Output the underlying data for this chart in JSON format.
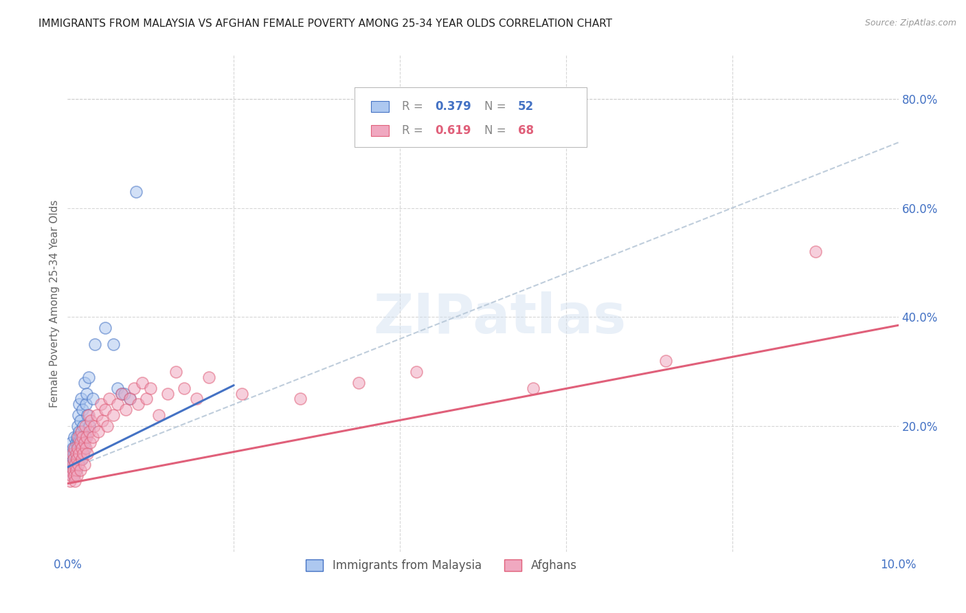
{
  "title": "IMMIGRANTS FROM MALAYSIA VS AFGHAN FEMALE POVERTY AMONG 25-34 YEAR OLDS CORRELATION CHART",
  "source": "Source: ZipAtlas.com",
  "ylabel": "Female Poverty Among 25-34 Year Olds",
  "xlim": [
    0.0,
    0.1
  ],
  "ylim": [
    -0.03,
    0.88
  ],
  "yticks_right": [
    0.2,
    0.4,
    0.6,
    0.8
  ],
  "yticklabels_right": [
    "20.0%",
    "40.0%",
    "60.0%",
    "80.0%"
  ],
  "color_blue": "#adc8f0",
  "color_pink": "#f0a8c0",
  "color_blue_line": "#4472c4",
  "color_pink_line": "#e0607a",
  "color_dashed": "#b8c8d8",
  "color_axis_text": "#4472c4",
  "watermark": "ZIPatlas",
  "malaysia_x": [
    0.0003,
    0.0004,
    0.0005,
    0.0005,
    0.0006,
    0.0006,
    0.0007,
    0.0007,
    0.0008,
    0.0008,
    0.0009,
    0.0009,
    0.001,
    0.001,
    0.001,
    0.0011,
    0.0011,
    0.0012,
    0.0012,
    0.0013,
    0.0013,
    0.0014,
    0.0014,
    0.0014,
    0.0015,
    0.0015,
    0.0015,
    0.0016,
    0.0016,
    0.0017,
    0.0017,
    0.0018,
    0.0018,
    0.0019,
    0.0019,
    0.002,
    0.002,
    0.0021,
    0.0022,
    0.0023,
    0.0024,
    0.0025,
    0.0026,
    0.003,
    0.0033,
    0.0045,
    0.0055,
    0.006,
    0.0065,
    0.0068,
    0.0075,
    0.0082
  ],
  "malaysia_y": [
    0.14,
    0.15,
    0.13,
    0.17,
    0.16,
    0.12,
    0.11,
    0.14,
    0.18,
    0.15,
    0.16,
    0.13,
    0.17,
    0.14,
    0.12,
    0.18,
    0.16,
    0.2,
    0.15,
    0.17,
    0.22,
    0.19,
    0.14,
    0.24,
    0.18,
    0.16,
    0.21,
    0.16,
    0.25,
    0.19,
    0.14,
    0.23,
    0.17,
    0.15,
    0.2,
    0.16,
    0.28,
    0.18,
    0.24,
    0.26,
    0.22,
    0.29,
    0.2,
    0.25,
    0.35,
    0.38,
    0.35,
    0.27,
    0.26,
    0.26,
    0.25,
    0.63
  ],
  "afghan_x": [
    0.0003,
    0.0004,
    0.0005,
    0.0006,
    0.0006,
    0.0007,
    0.0007,
    0.0008,
    0.0008,
    0.0009,
    0.0009,
    0.001,
    0.001,
    0.0011,
    0.0011,
    0.0012,
    0.0013,
    0.0013,
    0.0014,
    0.0015,
    0.0015,
    0.0016,
    0.0017,
    0.0017,
    0.0018,
    0.0019,
    0.002,
    0.002,
    0.0021,
    0.0022,
    0.0023,
    0.0024,
    0.0025,
    0.0026,
    0.0027,
    0.0028,
    0.003,
    0.0032,
    0.0035,
    0.0037,
    0.004,
    0.0042,
    0.0045,
    0.0048,
    0.005,
    0.0055,
    0.006,
    0.0065,
    0.007,
    0.0075,
    0.008,
    0.0085,
    0.009,
    0.0095,
    0.01,
    0.011,
    0.012,
    0.013,
    0.014,
    0.0155,
    0.017,
    0.021,
    0.028,
    0.035,
    0.042,
    0.056,
    0.072,
    0.09
  ],
  "afghan_y": [
    0.1,
    0.12,
    0.11,
    0.13,
    0.15,
    0.12,
    0.14,
    0.11,
    0.16,
    0.13,
    0.1,
    0.15,
    0.12,
    0.14,
    0.11,
    0.16,
    0.13,
    0.18,
    0.15,
    0.17,
    0.12,
    0.19,
    0.16,
    0.14,
    0.18,
    0.15,
    0.17,
    0.13,
    0.2,
    0.16,
    0.18,
    0.15,
    0.22,
    0.19,
    0.17,
    0.21,
    0.18,
    0.2,
    0.22,
    0.19,
    0.24,
    0.21,
    0.23,
    0.2,
    0.25,
    0.22,
    0.24,
    0.26,
    0.23,
    0.25,
    0.27,
    0.24,
    0.28,
    0.25,
    0.27,
    0.22,
    0.26,
    0.3,
    0.27,
    0.25,
    0.29,
    0.26,
    0.25,
    0.28,
    0.3,
    0.27,
    0.32,
    0.52
  ],
  "blue_line_x": [
    0.0,
    0.02
  ],
  "blue_line_y": [
    0.125,
    0.275
  ],
  "pink_line_x": [
    0.0,
    0.1
  ],
  "pink_line_y": [
    0.095,
    0.385
  ],
  "dashed_line_x": [
    0.0,
    0.1
  ],
  "dashed_line_y": [
    0.12,
    0.72
  ]
}
